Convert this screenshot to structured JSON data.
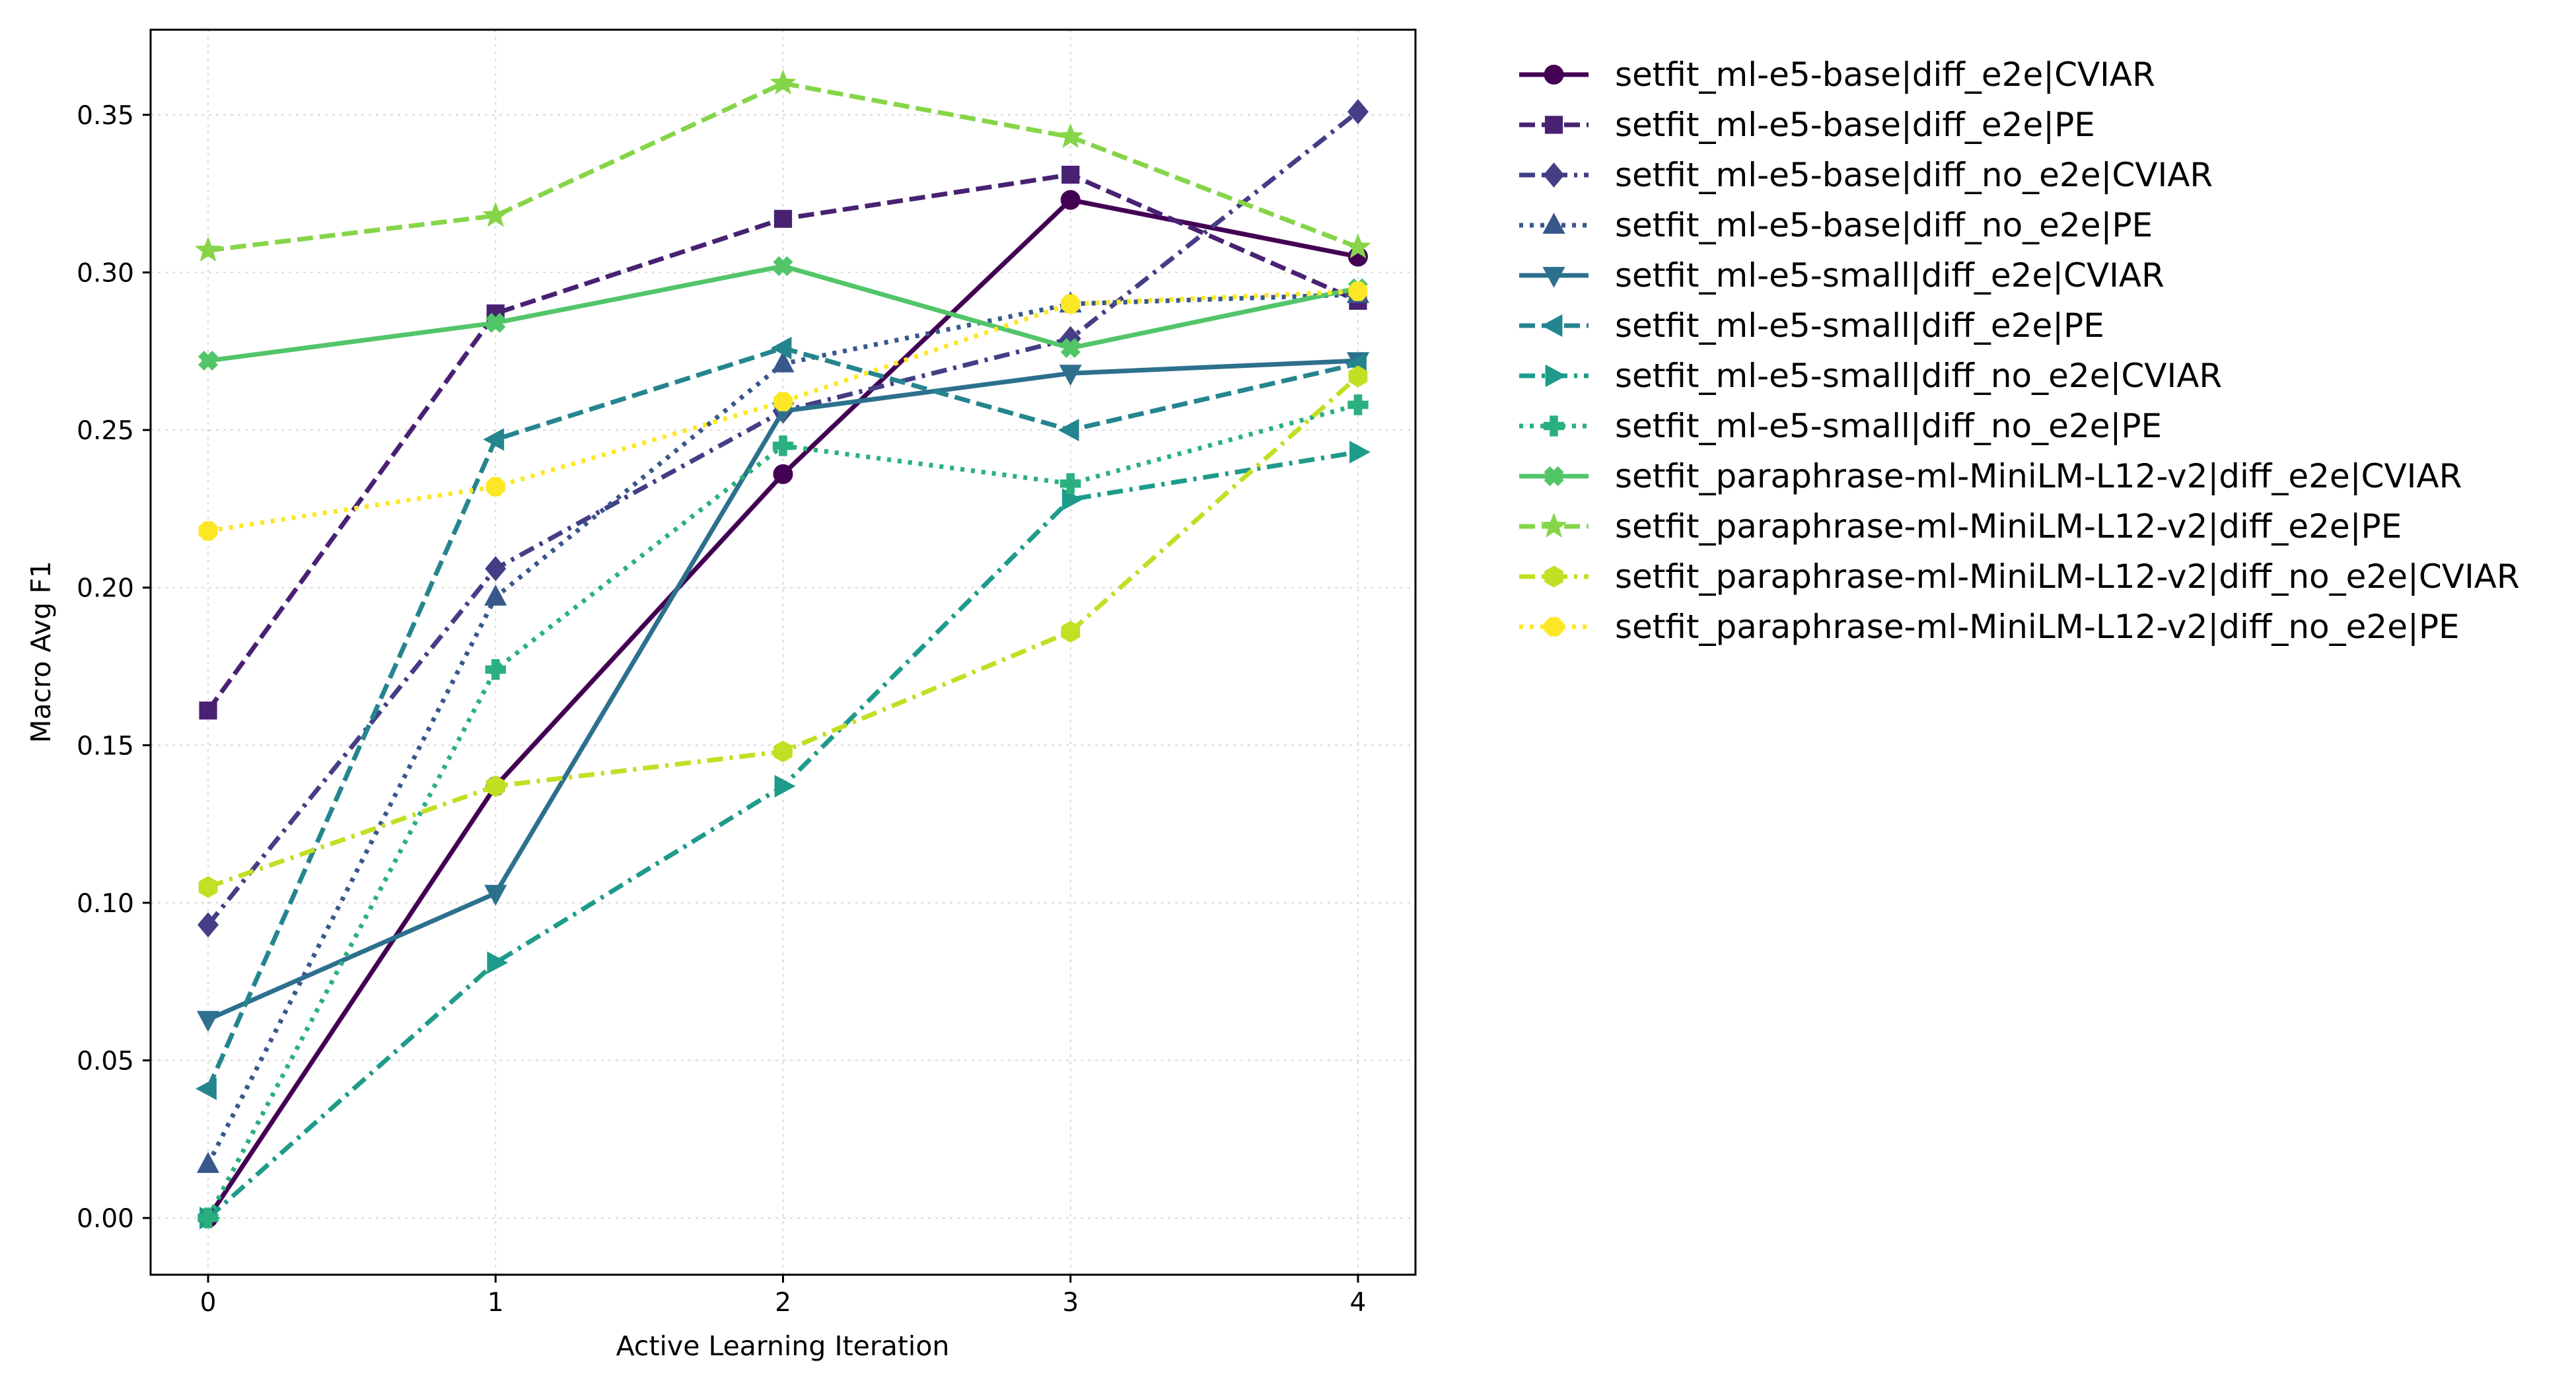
{
  "chart_data": {
    "type": "line",
    "title": "",
    "xlabel": "Active Learning Iteration",
    "ylabel": "Macro Avg F1",
    "xlim": [
      -0.2,
      4.2
    ],
    "ylim": [
      -0.018,
      0.377
    ],
    "x": [
      0,
      1,
      2,
      3,
      4
    ],
    "xticks": [
      "0",
      "1",
      "2",
      "3",
      "4"
    ],
    "yticks": [
      "0.00",
      "0.05",
      "0.10",
      "0.15",
      "0.20",
      "0.25",
      "0.30",
      "0.35"
    ],
    "grid": true,
    "legend_position": "outside-right",
    "series": [
      {
        "name": "setfit_ml-e5-base|diff_e2e|CVIAR",
        "color": "#440154",
        "dash": "solid",
        "marker": "circle",
        "values": [
          0.0,
          0.137,
          0.236,
          0.323,
          0.305
        ]
      },
      {
        "name": "setfit_ml-e5-base|diff_e2e|PE",
        "color": "#482173",
        "dash": "dashed",
        "marker": "square",
        "values": [
          0.161,
          0.287,
          0.317,
          0.331,
          0.291
        ]
      },
      {
        "name": "setfit_ml-e5-base|diff_no_e2e|CVIAR",
        "color": "#433e85",
        "dash": "dashdot",
        "marker": "diamond",
        "values": [
          0.093,
          0.206,
          0.256,
          0.279,
          0.351
        ]
      },
      {
        "name": "setfit_ml-e5-base|diff_no_e2e|PE",
        "color": "#38588c",
        "dash": "dotted",
        "marker": "triangle-up",
        "values": [
          0.017,
          0.197,
          0.271,
          0.29,
          0.293
        ]
      },
      {
        "name": "setfit_ml-e5-small|diff_e2e|CVIAR",
        "color": "#2d708e",
        "dash": "solid",
        "marker": "triangle-down",
        "values": [
          0.063,
          0.103,
          0.256,
          0.268,
          0.272
        ]
      },
      {
        "name": "setfit_ml-e5-small|diff_e2e|PE",
        "color": "#25858e",
        "dash": "dashed",
        "marker": "triangle-left",
        "values": [
          0.041,
          0.247,
          0.276,
          0.25,
          0.271
        ]
      },
      {
        "name": "setfit_ml-e5-small|diff_no_e2e|CVIAR",
        "color": "#1e9b8a",
        "dash": "dashdot",
        "marker": "triangle-right",
        "values": [
          0.0,
          0.081,
          0.137,
          0.228,
          0.243
        ]
      },
      {
        "name": "setfit_ml-e5-small|diff_no_e2e|PE",
        "color": "#2ab07f",
        "dash": "dotted",
        "marker": "plus",
        "values": [
          0.0,
          0.174,
          0.245,
          0.233,
          0.258
        ]
      },
      {
        "name": "setfit_paraphrase-ml-MiniLM-L12-v2|diff_e2e|CVIAR",
        "color": "#52c569",
        "dash": "solid",
        "marker": "x",
        "values": [
          0.272,
          0.284,
          0.302,
          0.276,
          0.295
        ]
      },
      {
        "name": "setfit_paraphrase-ml-MiniLM-L12-v2|diff_e2e|PE",
        "color": "#86d549",
        "dash": "dashed",
        "marker": "star",
        "values": [
          0.307,
          0.318,
          0.36,
          0.343,
          0.308
        ]
      },
      {
        "name": "setfit_paraphrase-ml-MiniLM-L12-v2|diff_no_e2e|CVIAR",
        "color": "#c2df23",
        "dash": "dashdot",
        "marker": "hexagon",
        "values": [
          0.105,
          0.137,
          0.148,
          0.186,
          0.267
        ]
      },
      {
        "name": "setfit_paraphrase-ml-MiniLM-L12-v2|diff_no_e2e|PE",
        "color": "#fde725",
        "dash": "dotted",
        "marker": "octagon",
        "values": [
          0.218,
          0.232,
          0.259,
          0.29,
          0.294
        ]
      }
    ]
  }
}
